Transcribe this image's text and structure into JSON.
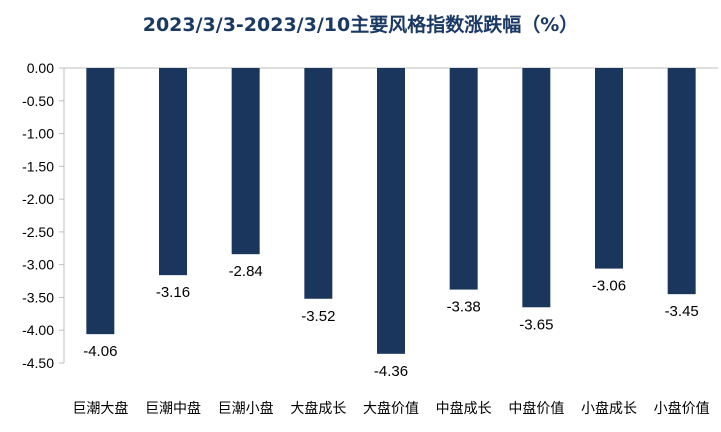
{
  "chart_data": {
    "type": "bar",
    "title": "2023/3/3-2023/3/10主要风格指数涨跌幅（%）",
    "categories": [
      "巨潮大盘",
      "巨潮中盘",
      "巨潮小盘",
      "大盘成长",
      "大盘价值",
      "中盘成长",
      "中盘价值",
      "小盘成长",
      "小盘价值"
    ],
    "values": [
      -4.06,
      -3.16,
      -2.84,
      -3.52,
      -4.36,
      -3.38,
      -3.65,
      -3.06,
      -3.45
    ],
    "data_labels": [
      "-4.06",
      "-3.16",
      "-2.84",
      "-3.52",
      "-4.36",
      "-3.38",
      "-3.65",
      "-3.06",
      "-3.45"
    ],
    "yticks": [
      "0.00",
      "-0.50",
      "-1.00",
      "-1.50",
      "-2.00",
      "-2.50",
      "-3.00",
      "-3.50",
      "-4.00",
      "-4.50"
    ],
    "ylim": [
      -4.5,
      0
    ],
    "bar_color": "#1b365d",
    "grid": false,
    "legend": "none"
  }
}
